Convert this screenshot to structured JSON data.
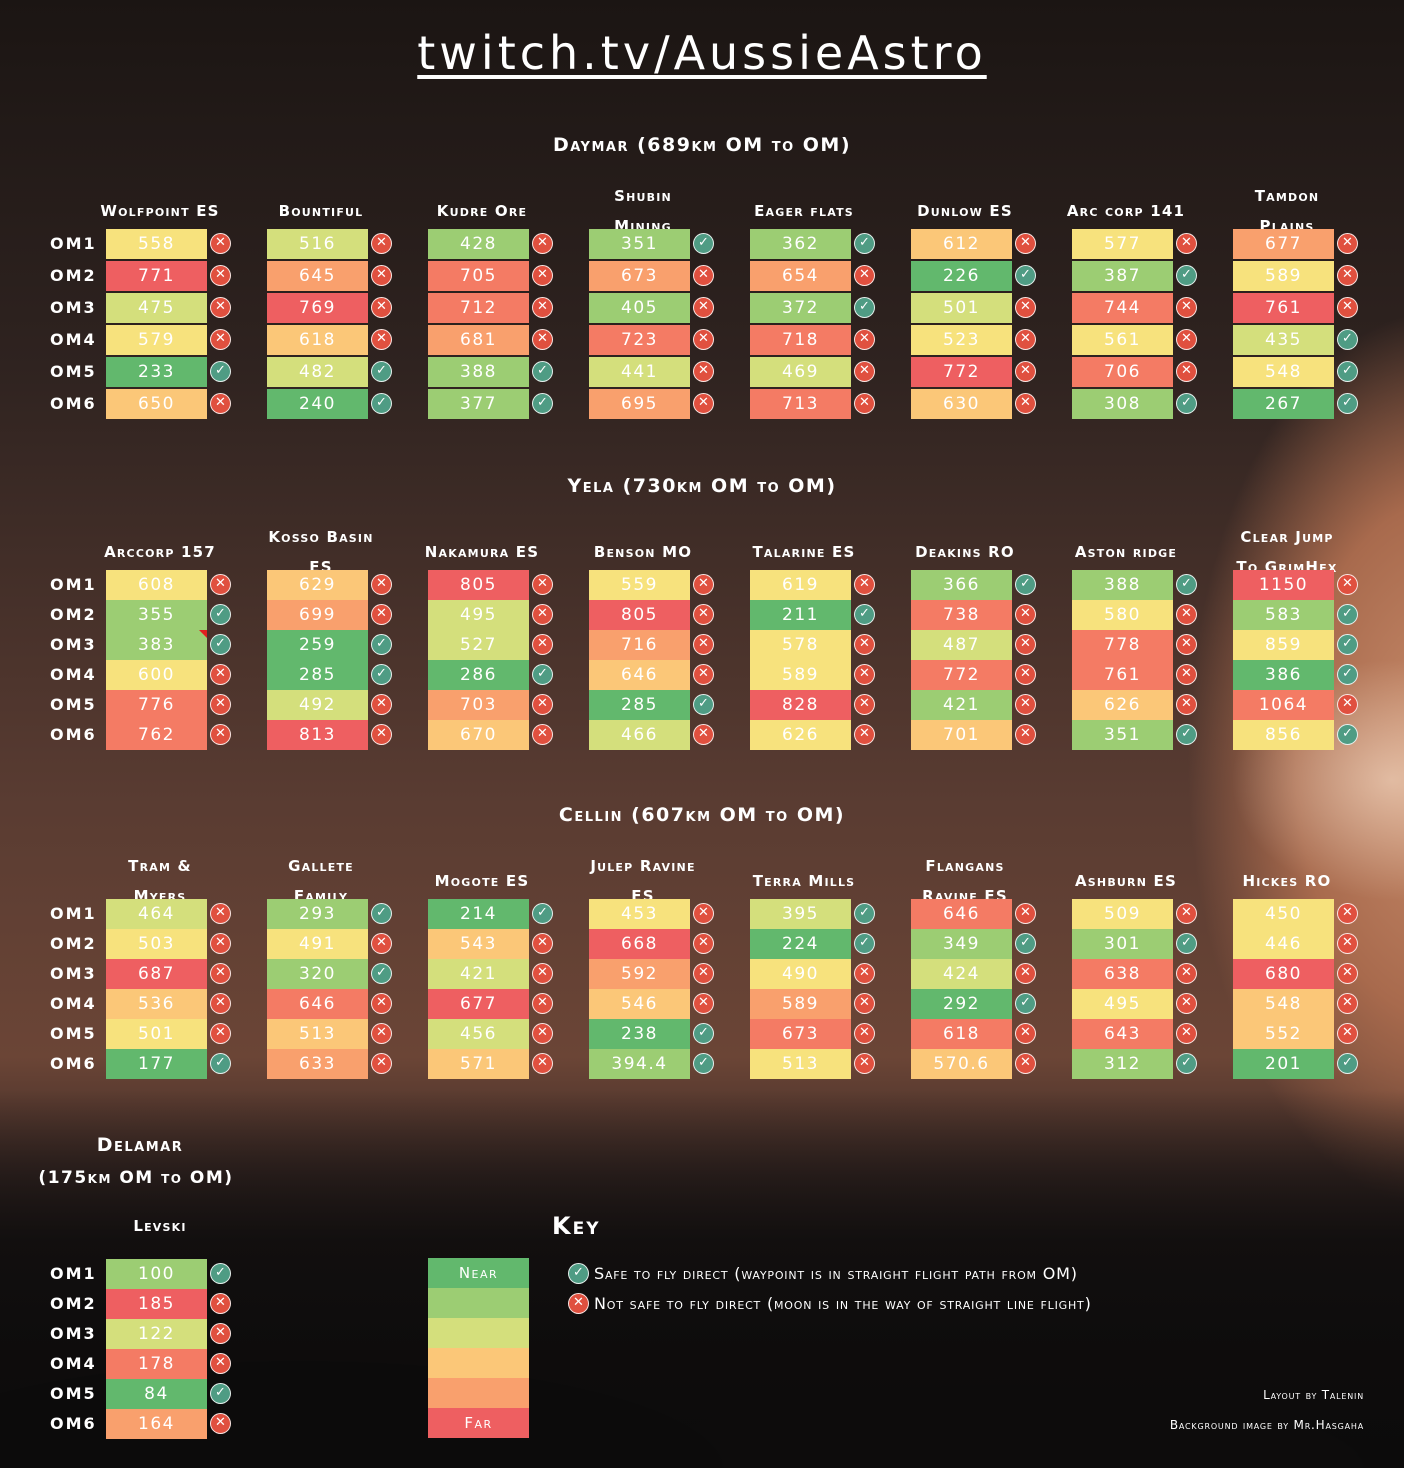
{
  "title": "twitch.tv/AussieAstro",
  "sections": [
    {
      "title": "Daymar (689km OM to OM)",
      "locations": [
        {
          "name": [
            "Wolfpoint ES"
          ],
          "values": [
            "558",
            "771",
            "475",
            "579",
            "233",
            "650"
          ],
          "safe": [
            false,
            false,
            false,
            false,
            true,
            false
          ],
          "tiers": [
            4,
            8,
            3,
            4,
            1,
            5
          ]
        },
        {
          "name": [
            "Bountiful"
          ],
          "values": [
            "516",
            "645",
            "769",
            "618",
            "482",
            "240"
          ],
          "safe": [
            false,
            false,
            false,
            false,
            true,
            true
          ],
          "tiers": [
            3,
            6,
            8,
            5,
            3,
            1
          ]
        },
        {
          "name": [
            "Kudre Ore"
          ],
          "values": [
            "428",
            "705",
            "712",
            "681",
            "388",
            "377"
          ],
          "safe": [
            false,
            false,
            false,
            false,
            true,
            true
          ],
          "tiers": [
            2,
            7,
            7,
            6,
            2,
            2
          ]
        },
        {
          "name": [
            "Shubin",
            "Mining"
          ],
          "values": [
            "351",
            "673",
            "405",
            "723",
            "441",
            "695"
          ],
          "safe": [
            true,
            false,
            false,
            false,
            false,
            false
          ],
          "tiers": [
            2,
            6,
            2,
            7,
            3,
            6
          ]
        },
        {
          "name": [
            "Eager flats"
          ],
          "values": [
            "362",
            "654",
            "372",
            "718",
            "469",
            "713"
          ],
          "safe": [
            true,
            false,
            true,
            false,
            false,
            false
          ],
          "tiers": [
            2,
            6,
            2,
            7,
            3,
            7
          ]
        },
        {
          "name": [
            "Dunlow ES"
          ],
          "values": [
            "612",
            "226",
            "501",
            "523",
            "772",
            "630"
          ],
          "safe": [
            false,
            true,
            false,
            false,
            false,
            false
          ],
          "tiers": [
            5,
            1,
            3,
            4,
            8,
            5
          ]
        },
        {
          "name": [
            "Arc corp 141"
          ],
          "values": [
            "577",
            "387",
            "744",
            "561",
            "706",
            "308"
          ],
          "safe": [
            false,
            true,
            false,
            false,
            false,
            true
          ],
          "tiers": [
            4,
            2,
            7,
            4,
            7,
            2
          ]
        },
        {
          "name": [
            "Tamdon",
            "Plains"
          ],
          "values": [
            "677",
            "589",
            "761",
            "435",
            "548",
            "267"
          ],
          "safe": [
            false,
            false,
            false,
            true,
            true,
            true
          ],
          "tiers": [
            6,
            4,
            8,
            3,
            4,
            1
          ]
        }
      ]
    },
    {
      "title": "Yela (730km OM to OM)",
      "locations": [
        {
          "name": [
            "Arccorp 157"
          ],
          "values": [
            "608",
            "355",
            "383",
            "600",
            "776",
            "762"
          ],
          "safe": [
            false,
            true,
            true,
            false,
            false,
            false
          ],
          "tiers": [
            4,
            2,
            2,
            4,
            7,
            7
          ]
        },
        {
          "name": [
            "Kosso Basin",
            "ES"
          ],
          "values": [
            "629",
            "699",
            "259",
            "285",
            "492",
            "813"
          ],
          "safe": [
            false,
            false,
            true,
            true,
            false,
            false
          ],
          "tiers": [
            5,
            6,
            1,
            1,
            3,
            8
          ]
        },
        {
          "name": [
            "Nakamura ES"
          ],
          "values": [
            "805",
            "495",
            "527",
            "286",
            "703",
            "670"
          ],
          "safe": [
            false,
            false,
            false,
            true,
            false,
            false
          ],
          "tiers": [
            8,
            3,
            3,
            1,
            6,
            5
          ]
        },
        {
          "name": [
            "Benson MO"
          ],
          "values": [
            "559",
            "805",
            "716",
            "646",
            "285",
            "466"
          ],
          "safe": [
            false,
            false,
            false,
            false,
            true,
            false
          ],
          "tiers": [
            4,
            8,
            6,
            5,
            1,
            3
          ]
        },
        {
          "name": [
            "Talarine ES"
          ],
          "values": [
            "619",
            "211",
            "578",
            "589",
            "828",
            "626"
          ],
          "safe": [
            false,
            true,
            false,
            false,
            false,
            false
          ],
          "tiers": [
            4,
            1,
            4,
            4,
            8,
            4
          ]
        },
        {
          "name": [
            "Deakins RO"
          ],
          "values": [
            "366",
            "738",
            "487",
            "772",
            "421",
            "701"
          ],
          "safe": [
            true,
            false,
            false,
            false,
            false,
            false
          ],
          "tiers": [
            2,
            7,
            3,
            7,
            2,
            5
          ]
        },
        {
          "name": [
            "Aston ridge"
          ],
          "values": [
            "388",
            "580",
            "778",
            "761",
            "626",
            "351"
          ],
          "safe": [
            true,
            false,
            false,
            false,
            false,
            true
          ],
          "tiers": [
            2,
            4,
            7,
            7,
            5,
            2
          ]
        },
        {
          "name": [
            "Clear Jump",
            "To GrimHex"
          ],
          "values": [
            "1150",
            "583",
            "859",
            "386",
            "1064",
            "856"
          ],
          "safe": [
            false,
            true,
            true,
            true,
            false,
            true
          ],
          "tiers": [
            8,
            2,
            4,
            1,
            7,
            4
          ]
        }
      ]
    },
    {
      "title": "Cellin (607km OM to OM)",
      "locations": [
        {
          "name": [
            "Tram &",
            "Myers"
          ],
          "values": [
            "464",
            "503",
            "687",
            "536",
            "501",
            "177"
          ],
          "safe": [
            false,
            false,
            false,
            false,
            false,
            true
          ],
          "tiers": [
            3,
            4,
            8,
            5,
            4,
            1
          ]
        },
        {
          "name": [
            "Gallete",
            "Family"
          ],
          "values": [
            "293",
            "491",
            "320",
            "646",
            "513",
            "633"
          ],
          "safe": [
            true,
            false,
            true,
            false,
            false,
            false
          ],
          "tiers": [
            2,
            4,
            2,
            7,
            5,
            6
          ]
        },
        {
          "name": [
            "Mogote ES"
          ],
          "values": [
            "214",
            "543",
            "421",
            "677",
            "456",
            "571"
          ],
          "safe": [
            true,
            false,
            false,
            false,
            false,
            false
          ],
          "tiers": [
            1,
            5,
            3,
            8,
            3,
            5
          ]
        },
        {
          "name": [
            "Julep Ravine",
            "ES"
          ],
          "values": [
            "453",
            "668",
            "592",
            "546",
            "238",
            "394.4"
          ],
          "safe": [
            false,
            false,
            false,
            false,
            true,
            true
          ],
          "tiers": [
            4,
            8,
            6,
            5,
            1,
            2
          ]
        },
        {
          "name": [
            "Terra Mills"
          ],
          "values": [
            "395",
            "224",
            "490",
            "589",
            "673",
            "513"
          ],
          "safe": [
            true,
            true,
            false,
            false,
            false,
            false
          ],
          "tiers": [
            3,
            1,
            4,
            6,
            7,
            4
          ]
        },
        {
          "name": [
            "Flangans",
            "Ravine ES"
          ],
          "values": [
            "646",
            "349",
            "424",
            "292",
            "618",
            "570.6"
          ],
          "safe": [
            false,
            true,
            false,
            true,
            false,
            false
          ],
          "tiers": [
            7,
            2,
            3,
            1,
            7,
            5
          ]
        },
        {
          "name": [
            "Ashburn ES"
          ],
          "values": [
            "509",
            "301",
            "638",
            "495",
            "643",
            "312"
          ],
          "safe": [
            false,
            true,
            false,
            false,
            false,
            true
          ],
          "tiers": [
            4,
            2,
            7,
            4,
            7,
            2
          ]
        },
        {
          "name": [
            "Hickes RO"
          ],
          "values": [
            "450",
            "446",
            "680",
            "548",
            "552",
            "201"
          ],
          "safe": [
            false,
            false,
            false,
            false,
            false,
            true
          ],
          "tiers": [
            4,
            4,
            8,
            5,
            5,
            1
          ]
        }
      ]
    }
  ],
  "rows": [
    "OM1",
    "OM2",
    "OM3",
    "OM4",
    "OM5",
    "OM6"
  ],
  "delamar": {
    "title_line1": "Delamar",
    "title_line2": "(175km OM to OM)",
    "location": "Levski",
    "values": [
      "100",
      "185",
      "122",
      "178",
      "84",
      "164"
    ],
    "safe": [
      true,
      false,
      false,
      false,
      true,
      false
    ],
    "tiers": [
      2,
      8,
      3,
      7,
      1,
      6
    ]
  },
  "key": {
    "title": "Key",
    "near": "Near",
    "far": "Far",
    "safe_text": "Safe to fly direct (waypoint is in straight flight path from OM)",
    "unsafe_text": "Not safe to fly direct (moon is in the way of straight line flight)"
  },
  "credits": {
    "layout": "Layout by Talenin",
    "background": "Background image by Mr.Hasgaha"
  },
  "tier_colors": [
    "#62b86d",
    "#9ccd73",
    "#d4df7c",
    "#f7e27d",
    "#fbc778",
    "#f9a06d",
    "#f47b64",
    "#ee5f61"
  ]
}
